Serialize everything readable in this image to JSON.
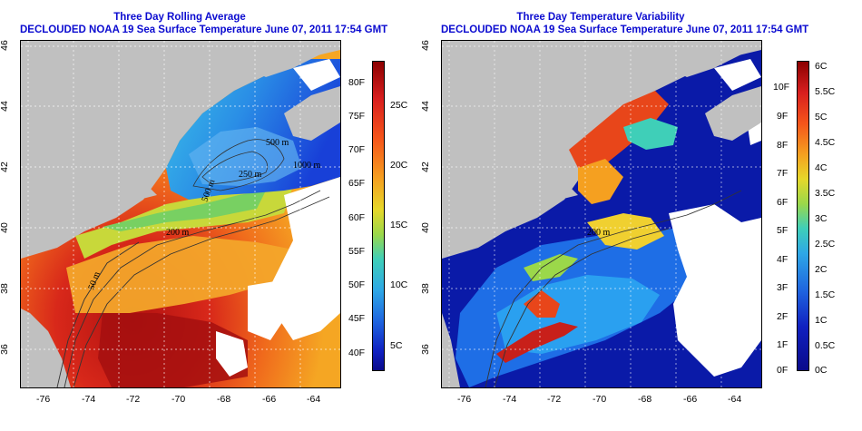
{
  "left_panel": {
    "title": "Three Day Rolling Average",
    "subtitle": "DECLOUDED NOAA 19 Sea Surface Temperature June 07, 2011 17:54 GMT",
    "lon_ticks": [
      "-76",
      "-74",
      "-72",
      "-70",
      "-68",
      "-66",
      "-64"
    ],
    "lat_ticks": [
      "46",
      "44",
      "42",
      "40",
      "38",
      "36"
    ],
    "contour_labels": [
      "200 m",
      "500 m",
      "500 m",
      "250 m",
      "1000 m",
      "50 m"
    ],
    "colorbar_f": [
      "80F",
      "75F",
      "70F",
      "65F",
      "60F",
      "55F",
      "50F",
      "45F",
      "40F"
    ],
    "colorbar_c": [
      "25C",
      "20C",
      "15C",
      "10C",
      "5C"
    ]
  },
  "right_panel": {
    "title": "Three Day Temperature Variability",
    "subtitle": "DECLOUDED NOAA 19 Sea Surface Temperature June 07, 2011 17:54 GMT",
    "lon_ticks": [
      "-76",
      "-74",
      "-72",
      "-70",
      "-68",
      "-66",
      "-64"
    ],
    "lat_ticks": [
      "46",
      "44",
      "42",
      "40",
      "38",
      "36"
    ],
    "contour_labels": [
      "200 m"
    ],
    "colorbar_f": [
      "10F",
      "9F",
      "8F",
      "7F",
      "6F",
      "5F",
      "4F",
      "3F",
      "2F",
      "1F",
      "0F"
    ],
    "colorbar_c": [
      "6C",
      "5.5C",
      "5C",
      "4.5C",
      "4C",
      "3.5C",
      "3C",
      "2.5C",
      "2C",
      "1.5C",
      "1C",
      "0.5C",
      "0C"
    ]
  },
  "colors": {
    "title": "#0b0bd0",
    "land": "#c0c0c0",
    "cloud": "#ffffff"
  }
}
